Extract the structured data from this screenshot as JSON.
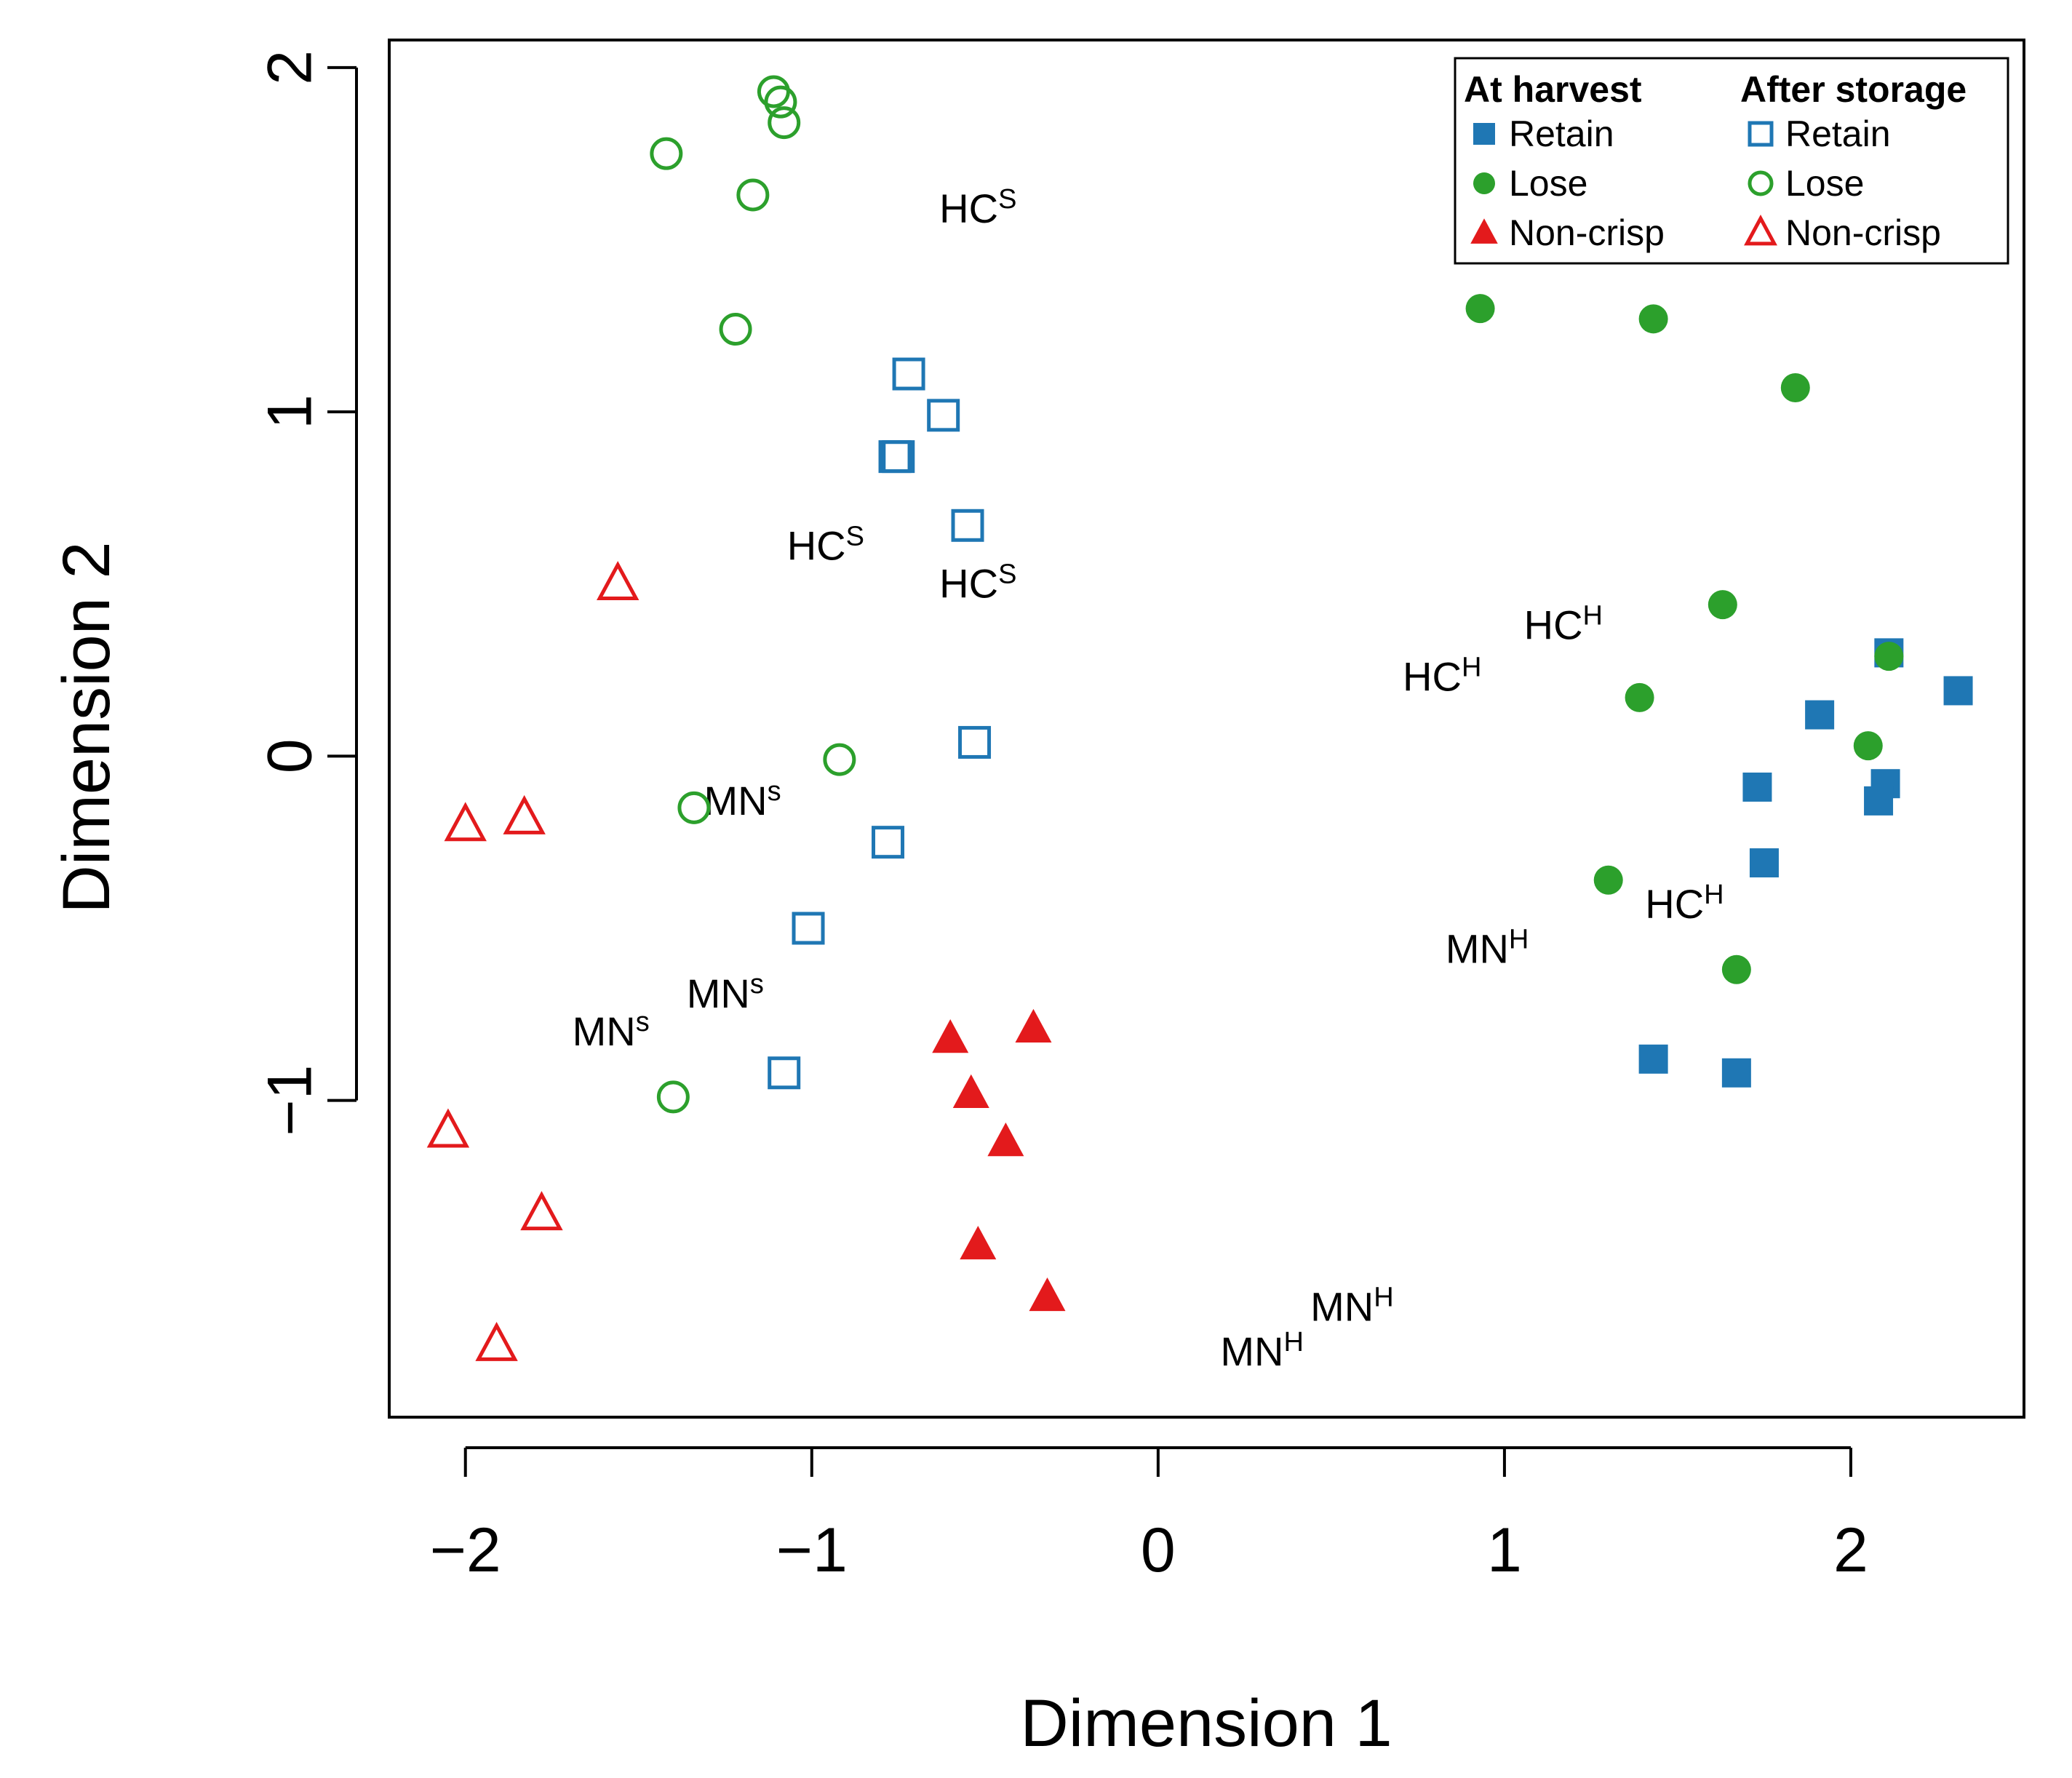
{
  "chart_data": {
    "type": "scatter",
    "xlabel": "Dimension 1",
    "ylabel": "Dimension 2",
    "xlim": [
      -2.22,
      2.5
    ],
    "ylim": [
      -1.92,
      2.08
    ],
    "xticks": [
      -2,
      -1,
      0,
      1,
      2
    ],
    "yticks": [
      -1,
      0,
      1,
      2
    ],
    "xtick_labels": [
      "−2",
      "−1",
      "0",
      "1",
      "2"
    ],
    "ytick_labels": [
      "−1",
      "0",
      "1",
      "2"
    ],
    "legend": {
      "position": "top-right",
      "columns": [
        {
          "heading": "At harvest",
          "entries": [
            {
              "label": "Retain",
              "series": "harvest_retain"
            },
            {
              "label": "Lose",
              "series": "harvest_lose"
            },
            {
              "label": "Non-crisp",
              "series": "harvest_noncrisp"
            }
          ]
        },
        {
          "heading": "After storage",
          "entries": [
            {
              "label": "Retain",
              "series": "storage_retain"
            },
            {
              "label": "Lose",
              "series": "storage_lose"
            },
            {
              "label": "Non-crisp",
              "series": "storage_noncrisp"
            }
          ]
        }
      ]
    },
    "series": [
      {
        "id": "harvest_retain",
        "name": "At harvest – Retain",
        "marker": "square",
        "filled": true,
        "color": "#1f77b4",
        "points": [
          {
            "x": 2.11,
            "y": 0.3
          },
          {
            "x": 2.31,
            "y": 0.19
          },
          {
            "x": 1.91,
            "y": 0.12
          },
          {
            "x": 1.73,
            "y": -0.09
          },
          {
            "x": 2.1,
            "y": -0.08
          },
          {
            "x": 2.08,
            "y": -0.13
          },
          {
            "x": 1.75,
            "y": -0.31
          },
          {
            "x": 1.43,
            "y": -0.88
          },
          {
            "x": 1.67,
            "y": -0.92
          }
        ]
      },
      {
        "id": "harvest_lose",
        "name": "At harvest – Lose",
        "marker": "circle",
        "filled": true,
        "color": "#2ca02c",
        "points": [
          {
            "x": 0.93,
            "y": 1.3
          },
          {
            "x": 1.43,
            "y": 1.27
          },
          {
            "x": 1.84,
            "y": 1.07
          },
          {
            "x": 1.63,
            "y": 0.44
          },
          {
            "x": 1.39,
            "y": 0.17
          },
          {
            "x": 2.11,
            "y": 0.29
          },
          {
            "x": 2.05,
            "y": 0.03
          },
          {
            "x": 1.3,
            "y": -0.36
          },
          {
            "x": 1.67,
            "y": -0.62
          }
        ]
      },
      {
        "id": "harvest_noncrisp",
        "name": "At harvest – Non-crisp",
        "marker": "triangle",
        "filled": true,
        "color": "#e31a1c",
        "points": [
          {
            "x": -0.6,
            "y": -0.82
          },
          {
            "x": -0.36,
            "y": -0.79
          },
          {
            "x": -0.54,
            "y": -0.98
          },
          {
            "x": -0.44,
            "y": -1.12
          },
          {
            "x": -0.52,
            "y": -1.42
          },
          {
            "x": -0.32,
            "y": -1.57
          }
        ]
      },
      {
        "id": "storage_retain",
        "name": "After storage – Retain",
        "marker": "square",
        "filled": false,
        "color": "#1f77b4",
        "points": [
          {
            "x": -0.72,
            "y": 1.11
          },
          {
            "x": -0.62,
            "y": 0.99
          },
          {
            "x": -0.76,
            "y": 0.87
          },
          {
            "x": -0.75,
            "y": 0.87
          },
          {
            "x": -0.55,
            "y": 0.67
          },
          {
            "x": -0.53,
            "y": 0.04
          },
          {
            "x": -0.78,
            "y": -0.25
          },
          {
            "x": -1.01,
            "y": -0.5
          },
          {
            "x": -1.08,
            "y": -0.92
          }
        ]
      },
      {
        "id": "storage_lose",
        "name": "After storage – Lose",
        "marker": "circle",
        "filled": false,
        "color": "#2ca02c",
        "points": [
          {
            "x": -1.11,
            "y": 1.93
          },
          {
            "x": -1.09,
            "y": 1.9
          },
          {
            "x": -1.08,
            "y": 1.84
          },
          {
            "x": -1.42,
            "y": 1.75
          },
          {
            "x": -1.17,
            "y": 1.63
          },
          {
            "x": -1.22,
            "y": 1.24
          },
          {
            "x": -0.92,
            "y": -0.01
          },
          {
            "x": -1.34,
            "y": -0.15
          },
          {
            "x": -1.4,
            "y": -0.99
          }
        ]
      },
      {
        "id": "storage_noncrisp",
        "name": "After storage – Non-crisp",
        "marker": "triangle",
        "filled": false,
        "color": "#e31a1c",
        "points": [
          {
            "x": -1.56,
            "y": 0.5
          },
          {
            "x": -2.0,
            "y": -0.2
          },
          {
            "x": -1.83,
            "y": -0.18
          },
          {
            "x": -2.05,
            "y": -1.09
          },
          {
            "x": -1.78,
            "y": -1.33
          },
          {
            "x": -1.91,
            "y": -1.71
          }
        ]
      }
    ],
    "annotations": [
      {
        "base": "HC",
        "sup": "S",
        "x": -0.52,
        "y": 1.55
      },
      {
        "base": "HC",
        "sup": "S",
        "x": -0.96,
        "y": 0.57
      },
      {
        "base": "HC",
        "sup": "S",
        "x": -0.52,
        "y": 0.46
      },
      {
        "base": "MN",
        "sup": "s",
        "x": -1.2,
        "y": -0.17
      },
      {
        "base": "MN",
        "sup": "s",
        "x": -1.25,
        "y": -0.73
      },
      {
        "base": "MN",
        "sup": "s",
        "x": -1.58,
        "y": -0.84
      },
      {
        "base": "HC",
        "sup": "H",
        "x": 1.17,
        "y": 0.34
      },
      {
        "base": "HC",
        "sup": "H",
        "x": 0.82,
        "y": 0.19
      },
      {
        "base": "HC",
        "sup": "H",
        "x": 1.52,
        "y": -0.47
      },
      {
        "base": "MN",
        "sup": "H",
        "x": 0.95,
        "y": -0.6
      },
      {
        "base": "MN",
        "sup": "H",
        "x": 0.56,
        "y": -1.64
      },
      {
        "base": "MN",
        "sup": "H",
        "x": 0.3,
        "y": -1.77
      }
    ]
  }
}
